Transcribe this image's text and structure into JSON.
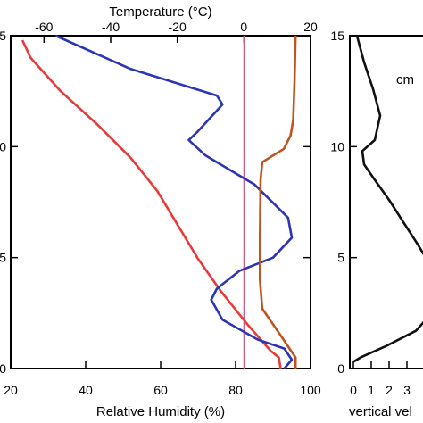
{
  "chart_data": [
    {
      "type": "line",
      "top_axis": {
        "label": "Temperature (°C)",
        "range": [
          -70,
          20
        ],
        "ticks": [
          -60,
          -40,
          -20,
          0,
          20
        ],
        "tick_labels": [
          "-60",
          "-40",
          "-20",
          "0",
          "20"
        ]
      },
      "bottom_axis": {
        "label": "Relative Humidity (%)",
        "range": [
          20,
          100
        ],
        "ticks": [
          20,
          40,
          60,
          80,
          100
        ],
        "tick_labels": [
          "20",
          "40",
          "60",
          "80",
          "100"
        ]
      },
      "y_axis": {
        "label": "",
        "range": [
          0,
          15
        ],
        "ticks": [
          0,
          5,
          10,
          15
        ],
        "tick_labels": [
          "0",
          "5",
          "10",
          "15"
        ]
      },
      "reference_line": {
        "axis": "top",
        "value": 0,
        "color": "#c8608a"
      },
      "series": [
        {
          "axis": "top",
          "color": "#e83a3a",
          "points": [
            [
              -66.5,
              14.8
            ],
            [
              -64,
              14.0
            ],
            [
              -55,
              12.5
            ],
            [
              -44,
              11.0
            ],
            [
              -34,
              9.5
            ],
            [
              -26,
              8.0
            ],
            [
              -20,
              6.5
            ],
            [
              -14,
              5.0
            ],
            [
              -7,
              3.5
            ],
            [
              1,
              2.0
            ],
            [
              8,
              0.8
            ],
            [
              10.5,
              0.5
            ],
            [
              11,
              0.0
            ]
          ]
        },
        {
          "axis": "bottom",
          "color": "#2b35b5",
          "points": [
            [
              32,
              15.0
            ],
            [
              52,
              13.5
            ],
            [
              75,
              12.3
            ],
            [
              76.5,
              11.9
            ],
            [
              70,
              10.7
            ],
            [
              67.5,
              10.3
            ],
            [
              72,
              9.6
            ],
            [
              80,
              8.8
            ],
            [
              85,
              8.3
            ],
            [
              94,
              6.8
            ],
            [
              95,
              5.9
            ],
            [
              90,
              5.0
            ],
            [
              81,
              4.4
            ],
            [
              75,
              3.6
            ],
            [
              73.5,
              3.1
            ],
            [
              76.5,
              2.2
            ],
            [
              86,
              1.3
            ],
            [
              93,
              0.9
            ],
            [
              95,
              0.4
            ],
            [
              93,
              0.0
            ]
          ]
        },
        {
          "axis": "top",
          "color": "#c0541e",
          "points": [
            [
              15.5,
              15.0
            ],
            [
              15.2,
              13.0
            ],
            [
              14.8,
              11.2
            ],
            [
              14.0,
              10.5
            ],
            [
              12.0,
              9.9
            ],
            [
              5.5,
              9.3
            ],
            [
              5.0,
              8.5
            ],
            [
              4.8,
              6.0
            ],
            [
              4.8,
              4.0
            ],
            [
              5.5,
              2.7
            ],
            [
              11,
              1.5
            ],
            [
              15.5,
              0.5
            ],
            [
              15.5,
              0.0
            ]
          ]
        }
      ]
    },
    {
      "type": "line",
      "x_axis": {
        "label": "vertical vel",
        "range": [
          0,
          4
        ],
        "ticks": [
          0,
          1,
          2,
          3
        ],
        "tick_labels": [
          "0",
          "1",
          "2",
          "3"
        ]
      },
      "y_axis": {
        "label": "",
        "range": [
          0,
          15
        ],
        "ticks": [
          0,
          5,
          10,
          15
        ],
        "tick_labels": [
          "0",
          "5",
          "10",
          "15"
        ]
      },
      "annotation": "cm",
      "series": [
        {
          "color": "#111111",
          "points": [
            [
              0.2,
              15.0
            ],
            [
              0.6,
              13.8
            ],
            [
              1.1,
              12.6
            ],
            [
              1.5,
              11.4
            ],
            [
              1.2,
              10.3
            ],
            [
              0.5,
              9.8
            ],
            [
              0.6,
              9.2
            ],
            [
              1.2,
              8.5
            ],
            [
              2.0,
              7.6
            ],
            [
              2.8,
              6.6
            ],
            [
              3.6,
              5.6
            ],
            [
              4.2,
              4.8
            ],
            [
              4.4,
              2.5
            ],
            [
              3.5,
              1.7
            ],
            [
              1.8,
              1.0
            ],
            [
              0.4,
              0.5
            ],
            [
              0.0,
              0.3
            ]
          ]
        }
      ]
    }
  ]
}
